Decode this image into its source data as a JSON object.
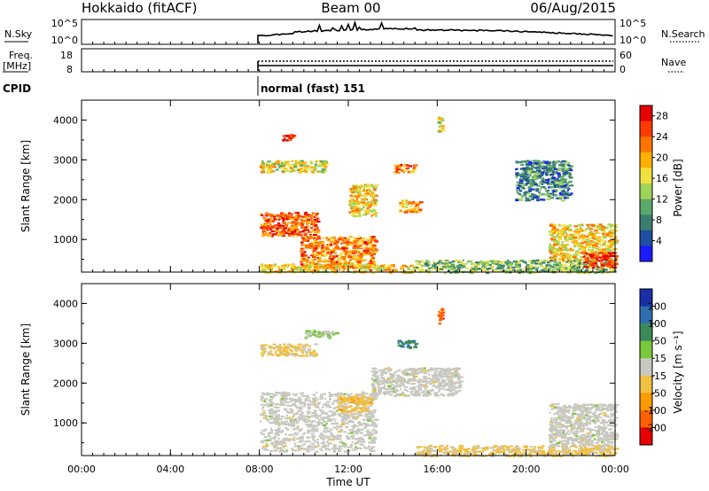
{
  "header": {
    "site": "Hokkaido (fitACF)",
    "beam": "Beam 00",
    "date": "06/Aug/2015"
  },
  "status_panel": {
    "nsky_label": "N.Sky",
    "nsky_ticks": [
      "10^5",
      "10^0"
    ],
    "nsearch_label": "N.Search",
    "nsearch_ticks": [
      "10^5",
      "10^0"
    ],
    "freq_label": "Freq.",
    "freq_unit": "[MHz]",
    "freq_ticks": [
      "18",
      "8"
    ],
    "nave_label": "Nave",
    "nave_ticks": [
      "60",
      "0"
    ],
    "cpid_label": "CPID",
    "cpid_value": "normal (fast) 151"
  },
  "colors": {
    "power_scale": [
      "#1a1aff",
      "#1e4fa0",
      "#3a7e6e",
      "#5aa86a",
      "#9fd35a",
      "#f0e040",
      "#ffb000",
      "#ff7400",
      "#ff3a00",
      "#e60000"
    ],
    "velocity_scale": [
      "#1a2ea8",
      "#2e6fb0",
      "#3c8a5a",
      "#7ac83c",
      "#c8c8c0",
      "#f0c040",
      "#ff9a00",
      "#ff6000",
      "#e60000"
    ]
  },
  "chart_data": [
    {
      "type": "heatmap",
      "name": "power",
      "ylabel": "Slant Range [km]",
      "yticks": [
        "4000",
        "3000",
        "2000",
        "1000"
      ],
      "ylim": [
        180,
        4500
      ],
      "x_range_hours": [
        0,
        24
      ],
      "colorbar": {
        "label": "Power [dB]",
        "ticks": [
          "28",
          "24",
          "20",
          "16",
          "12",
          "8",
          "4"
        ],
        "range": [
          0,
          30
        ]
      },
      "regions": [
        {
          "t0": 8.0,
          "t1": 10.6,
          "r0": 1100,
          "r1": 1700,
          "power": 24
        },
        {
          "t0": 9.8,
          "t1": 13.2,
          "r0": 300,
          "r1": 1100,
          "power": 22
        },
        {
          "t0": 8.0,
          "t1": 11.0,
          "r0": 2700,
          "r1": 3000,
          "power": 16
        },
        {
          "t0": 12.0,
          "t1": 13.2,
          "r0": 1600,
          "r1": 2400,
          "power": 18
        },
        {
          "t0": 14.2,
          "t1": 15.2,
          "r0": 1700,
          "r1": 2000,
          "power": 20
        },
        {
          "t0": 14.0,
          "t1": 15.0,
          "r0": 2700,
          "r1": 2900,
          "power": 22
        },
        {
          "t0": 8.0,
          "t1": 15.0,
          "r0": 180,
          "r1": 400,
          "power": 18
        },
        {
          "t0": 15.0,
          "t1": 24.0,
          "r0": 180,
          "r1": 500,
          "power": 12
        },
        {
          "t0": 19.5,
          "t1": 22.0,
          "r0": 2000,
          "r1": 3000,
          "power": 8
        },
        {
          "t0": 21.0,
          "t1": 24.0,
          "r0": 500,
          "r1": 1400,
          "power": 18
        },
        {
          "t0": 22.5,
          "t1": 24.0,
          "r0": 300,
          "r1": 700,
          "power": 26
        },
        {
          "t0": 9.0,
          "t1": 9.5,
          "r0": 3500,
          "r1": 3650,
          "power": 28
        },
        {
          "t0": 16.0,
          "t1": 16.2,
          "r0": 3700,
          "r1": 4100,
          "power": 16
        }
      ]
    },
    {
      "type": "heatmap",
      "name": "velocity",
      "ylabel": "Slant Range [km]",
      "yticks": [
        "4000",
        "3000",
        "2000",
        "1000"
      ],
      "ylim": [
        180,
        4500
      ],
      "x_range_hours": [
        0,
        24
      ],
      "xlabel": "Time UT",
      "xticks": [
        "00:00",
        "04:00",
        "08:00",
        "12:00",
        "16:00",
        "20:00",
        "00:00"
      ],
      "colorbar": {
        "label": "Velocity [m s⁻¹]",
        "ticks": [
          "200",
          "100",
          "50",
          "15",
          "-15",
          "-50",
          "-100",
          "-200"
        ],
        "range": [
          -250,
          250
        ]
      },
      "regions": [
        {
          "t0": 8.0,
          "t1": 13.2,
          "r0": 300,
          "r1": 1800,
          "velocity": 0
        },
        {
          "t0": 8.0,
          "t1": 10.5,
          "r0": 2700,
          "r1": 3000,
          "velocity": -40
        },
        {
          "t0": 13.0,
          "t1": 17.0,
          "r0": 1700,
          "r1": 2400,
          "velocity": 0
        },
        {
          "t0": 11.5,
          "t1": 13.0,
          "r0": 1300,
          "r1": 1700,
          "velocity": -60
        },
        {
          "t0": 15.0,
          "t1": 24.0,
          "r0": 180,
          "r1": 450,
          "velocity": -40
        },
        {
          "t0": 21.0,
          "t1": 24.0,
          "r0": 450,
          "r1": 1500,
          "velocity": 0
        },
        {
          "t0": 14.2,
          "t1": 15.0,
          "r0": 2900,
          "r1": 3100,
          "velocity": 120
        },
        {
          "t0": 16.0,
          "t1": 16.2,
          "r0": 3500,
          "r1": 3900,
          "velocity": -180
        },
        {
          "t0": 10.0,
          "t1": 11.5,
          "r0": 3150,
          "r1": 3350,
          "velocity": 30
        }
      ]
    }
  ]
}
